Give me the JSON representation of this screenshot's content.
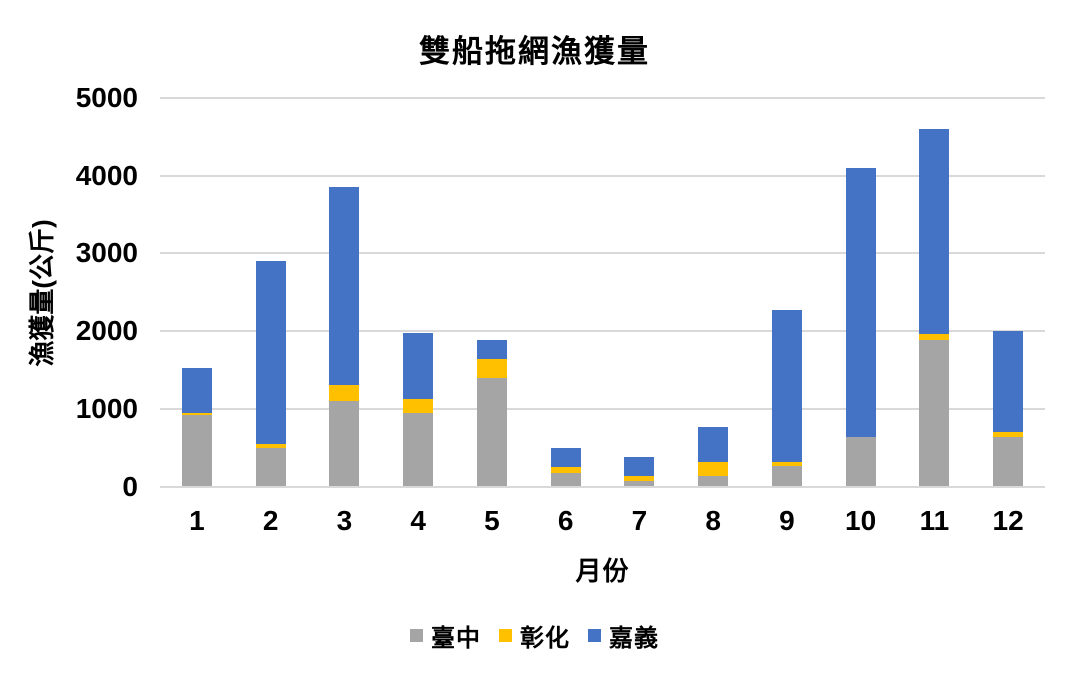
{
  "title": "雙船拖網漁獲量",
  "colors": {
    "taichung": "#A5A5A5",
    "changhua": "#FFC000",
    "chiayi": "#4472C4",
    "gridline": "#D9D9D9",
    "text": "#000000",
    "background": "#FFFFFF"
  },
  "chart_data": {
    "type": "bar",
    "stacked": true,
    "title": "雙船拖網漁獲量",
    "xlabel": "月份",
    "ylabel": "漁獲量(公斤)",
    "categories": [
      "1",
      "2",
      "3",
      "4",
      "5",
      "6",
      "7",
      "8",
      "9",
      "10",
      "11",
      "12"
    ],
    "series": [
      {
        "name": "臺中",
        "color": "#A5A5A5",
        "values": [
          920,
          500,
          1100,
          950,
          1390,
          170,
          70,
          130,
          260,
          640,
          1880,
          640
        ]
      },
      {
        "name": "彰化",
        "color": "#FFC000",
        "values": [
          25,
          50,
          200,
          170,
          250,
          85,
          60,
          180,
          60,
          0,
          80,
          60
        ]
      },
      {
        "name": "嘉義",
        "color": "#4472C4",
        "values": [
          580,
          2350,
          2550,
          860,
          240,
          235,
          250,
          460,
          1950,
          3460,
          2640,
          1300
        ]
      }
    ],
    "totals": [
      1525,
      2900,
      3850,
      1980,
      1880,
      490,
      380,
      770,
      2270,
      4100,
      4600,
      2000
    ],
    "ylim": [
      0,
      5000
    ],
    "yticks": [
      0,
      1000,
      2000,
      3000,
      4000,
      5000
    ],
    "grid": "horizontal",
    "legend_position": "bottom"
  }
}
